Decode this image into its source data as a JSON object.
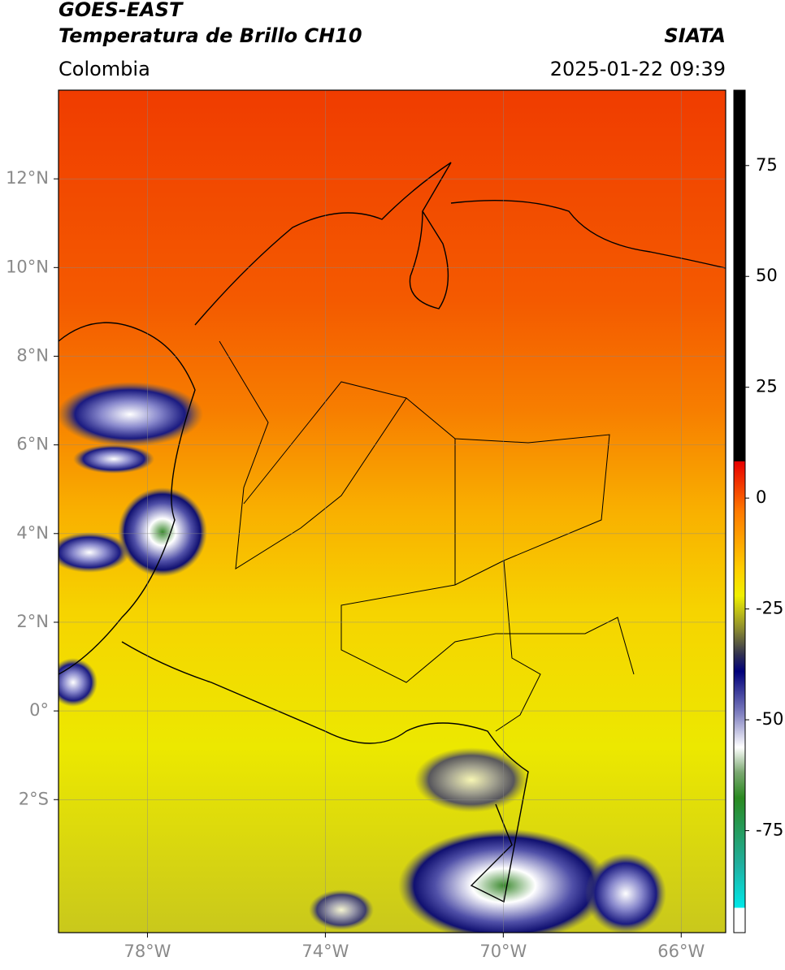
{
  "header": {
    "satellite": "GOES-EAST",
    "product": "Temperatura de Brillo CH10",
    "region": "Colombia",
    "source": "SIATA",
    "datetime": "2025-01-22 09:39"
  },
  "map": {
    "xlim": [
      -80,
      -65
    ],
    "ylim": [
      -5,
      14
    ],
    "xticks": [
      {
        "value": -78,
        "label": "78°W"
      },
      {
        "value": -74,
        "label": "74°W"
      },
      {
        "value": -70,
        "label": "70°W"
      },
      {
        "value": -66,
        "label": "66°W"
      }
    ],
    "yticks": [
      {
        "value": 12,
        "label": "12°N"
      },
      {
        "value": 10,
        "label": "10°N"
      },
      {
        "value": 8,
        "label": "8°N"
      },
      {
        "value": 6,
        "label": "6°N"
      },
      {
        "value": 4,
        "label": "4°N"
      },
      {
        "value": 2,
        "label": "2°N"
      },
      {
        "value": 0,
        "label": "0°"
      },
      {
        "value": -2,
        "label": "2°S"
      }
    ],
    "grid": true
  },
  "colorbar": {
    "lim": [
      -98,
      92
    ],
    "ticks": [
      75,
      50,
      25,
      0,
      -25,
      -50,
      -75
    ]
  }
}
